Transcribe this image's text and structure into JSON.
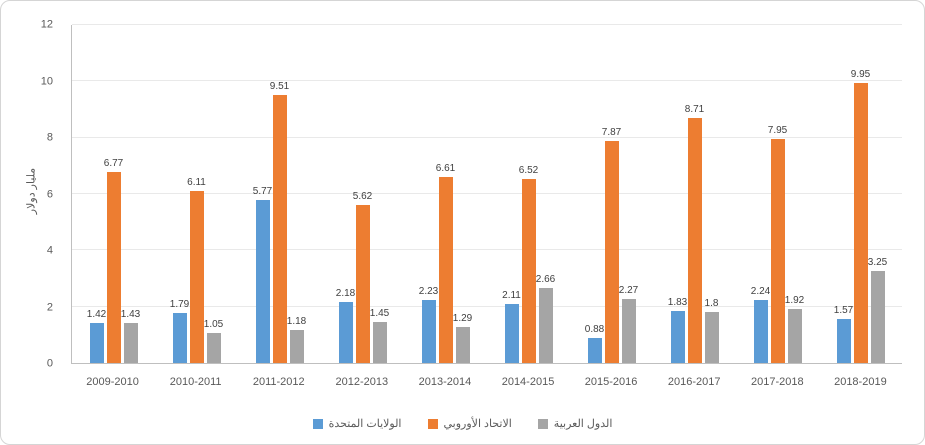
{
  "chart_data": {
    "type": "bar",
    "categories": [
      "2009-2010",
      "2010-2011",
      "2011-2012",
      "2012-2013",
      "2013-2014",
      "2014-2015",
      "2015-2016",
      "2016-2017",
      "2017-2018",
      "2018-2019"
    ],
    "series": [
      {
        "name": "الولايات المتحدة",
        "color": "#5B9BD5",
        "values": [
          1.42,
          1.79,
          5.77,
          2.18,
          2.23,
          2.11,
          0.88,
          1.83,
          2.24,
          1.57
        ]
      },
      {
        "name": "الاتحاد الأوروبي",
        "color": "#ED7D31",
        "values": [
          6.77,
          6.11,
          9.51,
          5.62,
          6.61,
          6.52,
          7.87,
          8.71,
          7.95,
          9.95
        ]
      },
      {
        "name": "الدول العربية",
        "color": "#A5A5A5",
        "values": [
          1.43,
          1.05,
          1.18,
          1.45,
          1.29,
          2.66,
          2.27,
          1.8,
          1.92,
          3.25
        ]
      }
    ],
    "title": "",
    "xlabel": "",
    "ylabel": "مليار دولار",
    "ylim": [
      0,
      12
    ],
    "ytick_step": 2,
    "yticks": [
      0,
      2,
      4,
      6,
      8,
      10,
      12
    ],
    "grid": "horizontal-light",
    "legend_position": "bottom",
    "data_labels": true
  }
}
